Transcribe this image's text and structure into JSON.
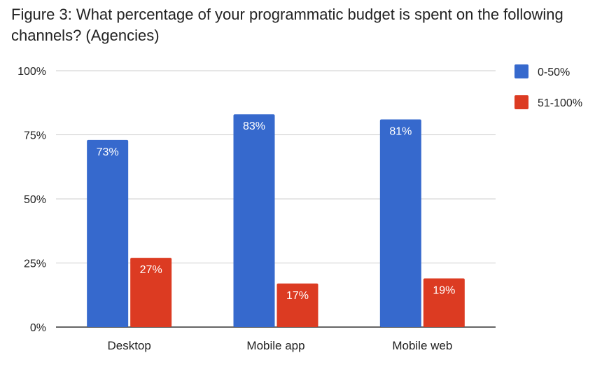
{
  "chart_data": {
    "type": "bar",
    "title": "Figure 3: What percentage of your programmatic budget is spent on the following channels? (Agencies)",
    "categories": [
      "Desktop",
      "Mobile app",
      "Mobile web"
    ],
    "series": [
      {
        "name": "0-50%",
        "color": "#3669cd",
        "values": [
          73,
          83,
          81
        ],
        "labels": [
          "73%",
          "83%",
          "81%"
        ]
      },
      {
        "name": "51-100%",
        "color": "#dc3b22",
        "values": [
          27,
          17,
          19
        ],
        "labels": [
          "27%",
          "17%",
          "19%"
        ]
      }
    ],
    "ylim": [
      0,
      100
    ],
    "yticks": [
      0,
      25,
      50,
      75,
      100
    ],
    "ytick_labels": [
      "0%",
      "25%",
      "50%",
      "75%",
      "100%"
    ],
    "xlabel": "",
    "ylabel": "",
    "grid": true,
    "legend": "right"
  }
}
